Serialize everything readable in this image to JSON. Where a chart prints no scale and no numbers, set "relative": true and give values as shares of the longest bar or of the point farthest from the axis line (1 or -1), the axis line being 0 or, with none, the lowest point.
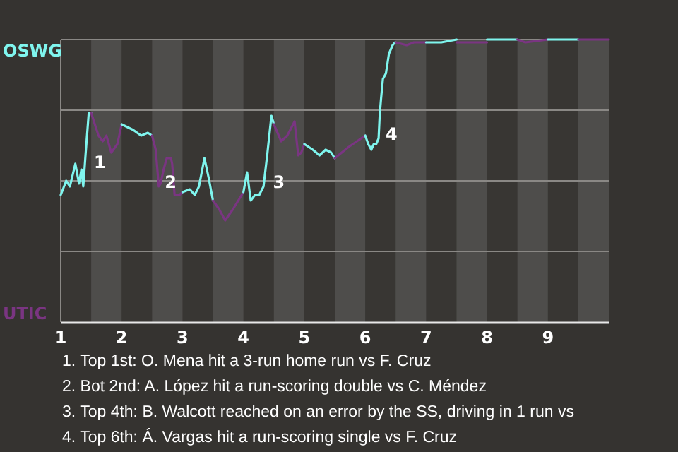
{
  "chart_data": {
    "type": "line",
    "relative": true,
    "grid": "y",
    "xlim": [
      1,
      10
    ],
    "xticks": [
      {
        "value": 1,
        "label": "1"
      },
      {
        "value": 2,
        "label": "2"
      },
      {
        "value": 3,
        "label": "3"
      },
      {
        "value": 4,
        "label": "4"
      },
      {
        "value": 5,
        "label": "5"
      },
      {
        "value": 6,
        "label": "6"
      },
      {
        "value": 7,
        "label": "7"
      },
      {
        "value": 8,
        "label": "8"
      },
      {
        "value": 9,
        "label": "9"
      }
    ],
    "bands": [
      {
        "axis": "x",
        "from": 1.5,
        "to": 2,
        "color": "#4e4d4b"
      },
      {
        "axis": "x",
        "from": 2.5,
        "to": 3,
        "color": "#4e4d4b"
      },
      {
        "axis": "x",
        "from": 3.5,
        "to": 4,
        "color": "#4e4d4b"
      },
      {
        "axis": "x",
        "from": 4.5,
        "to": 5,
        "color": "#4e4d4b"
      },
      {
        "axis": "x",
        "from": 5.5,
        "to": 6,
        "color": "#4e4d4b"
      },
      {
        "axis": "x",
        "from": 6.5,
        "to": 7,
        "color": "#4e4d4b"
      },
      {
        "axis": "x",
        "from": 7.5,
        "to": 8,
        "color": "#4e4d4b"
      },
      {
        "axis": "x",
        "from": 8.5,
        "to": 9,
        "color": "#4e4d4b"
      },
      {
        "axis": "x",
        "from": 9.5,
        "to": 10,
        "color": "#4e4d4b"
      }
    ],
    "series": [
      {
        "name": "OSWG",
        "color": "#7ff5ee",
        "x": [
          1,
          1.09,
          1.15,
          1.24,
          1.3,
          1.34,
          1.37,
          1.41,
          1.46,
          1.5
        ],
        "values": [
          0.45,
          0.5,
          0.48,
          0.56,
          0.49,
          0.54,
          0.48,
          0.6,
          0.74,
          0.74
        ]
      },
      {
        "name": "UTIC",
        "color": "#7a3582",
        "x": [
          1.5,
          1.62,
          1.69,
          1.75,
          1.83,
          1.93,
          2
        ],
        "values": [
          0.74,
          0.66,
          0.64,
          0.66,
          0.6,
          0.63,
          0.7
        ]
      },
      {
        "color": "#7ff5ee",
        "x": [
          2,
          2.19,
          2.32,
          2.43,
          2.5
        ],
        "values": [
          0.7,
          0.68,
          0.66,
          0.67,
          0.66
        ]
      },
      {
        "color": "#7a3582",
        "x": [
          2.5,
          2.56,
          2.61,
          2.64,
          2.69,
          2.74,
          2.81,
          2.83,
          2.87,
          2.95,
          3
        ],
        "values": [
          0.66,
          0.61,
          0.48,
          0.49,
          0.54,
          0.58,
          0.58,
          0.56,
          0.45,
          0.45,
          0.46
        ]
      },
      {
        "color": "#7ff5ee",
        "x": [
          3,
          3.12,
          3.2,
          3.27,
          3.36,
          3.43,
          3.5
        ],
        "values": [
          0.46,
          0.47,
          0.45,
          0.48,
          0.58,
          0.51,
          0.43
        ]
      },
      {
        "color": "#7a3582",
        "x": [
          3.5,
          3.6,
          3.7,
          3.83,
          4
        ],
        "values": [
          0.43,
          0.4,
          0.36,
          0.4,
          0.46
        ]
      },
      {
        "color": "#7ff5ee",
        "x": [
          4,
          4.06,
          4.12,
          4.19,
          4.26,
          4.33,
          4.39,
          4.46,
          4.5
        ],
        "values": [
          0.46,
          0.53,
          0.43,
          0.45,
          0.45,
          0.48,
          0.59,
          0.73,
          0.7
        ]
      },
      {
        "color": "#7a3582",
        "x": [
          4.5,
          4.62,
          4.72,
          4.84,
          4.9,
          4.95,
          5
        ],
        "values": [
          0.7,
          0.64,
          0.66,
          0.71,
          0.59,
          0.6,
          0.63
        ]
      },
      {
        "color": "#7ff5ee",
        "x": [
          5,
          5.14,
          5.25,
          5.35,
          5.44,
          5.5
        ],
        "values": [
          0.63,
          0.61,
          0.59,
          0.61,
          0.6,
          0.58
        ]
      },
      {
        "color": "#7a3582",
        "x": [
          5.5,
          5.73,
          6
        ],
        "values": [
          0.58,
          0.62,
          0.66
        ]
      },
      {
        "color": "#7ff5ee",
        "x": [
          6,
          6.05,
          6.1,
          6.14,
          6.18,
          6.22,
          6.24,
          6.26,
          6.29,
          6.34,
          6.39,
          6.45,
          6.49,
          6.5
        ],
        "values": [
          0.66,
          0.63,
          0.61,
          0.63,
          0.63,
          0.65,
          0.74,
          0.79,
          0.86,
          0.88,
          0.95,
          0.98,
          0.99,
          0.99
        ]
      },
      {
        "color": "#7a3582",
        "x": [
          6.5,
          6.68,
          6.8,
          7
        ],
        "values": [
          0.99,
          0.98,
          0.99,
          0.99
        ]
      },
      {
        "color": "#7ff5ee",
        "x": [
          7,
          7.25,
          7.5
        ],
        "values": [
          0.99,
          0.99,
          1
        ]
      },
      {
        "color": "#7a3582",
        "x": [
          7.5,
          7.61,
          8
        ],
        "values": [
          0.99,
          0.99,
          0.99
        ]
      },
      {
        "color": "#7ff5ee",
        "x": [
          8,
          8.5
        ],
        "values": [
          1,
          1
        ]
      },
      {
        "color": "#7a3582",
        "x": [
          8.5,
          8.63,
          9
        ],
        "values": [
          1,
          0.99,
          1
        ]
      },
      {
        "color": "#7ff5ee",
        "x": [
          9,
          9.5
        ],
        "values": [
          1,
          1
        ]
      },
      {
        "color": "#7a3582",
        "x": [
          9.5,
          10
        ],
        "values": [
          1,
          1
        ]
      }
    ],
    "annotations": [
      {
        "text": "1",
        "x": 1.5,
        "y": 0.57
      },
      {
        "text": "2",
        "x": 2.66,
        "y": 0.5
      },
      {
        "text": "3",
        "x": 4.44,
        "y": 0.5
      },
      {
        "text": "4",
        "x": 6.29,
        "y": 0.67
      },
      "1. Top 1st: O. Mena hit a 3-run home run vs F. Cruz",
      "2. Bot 2nd: A. López hit a run-scoring double vs C. Méndez",
      "3. Top 4th: B. Walcott reached on an error by the SS, driving in 1 run vs",
      "4. Top 6th: Á. Vargas hit a run-scoring single vs F. Cruz"
    ]
  }
}
